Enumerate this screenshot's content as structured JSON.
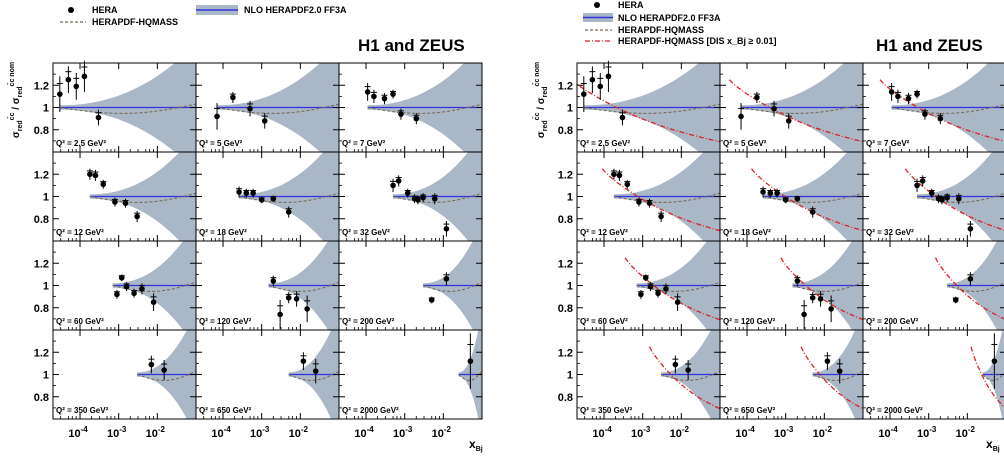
{
  "figure": {
    "collab": "H1 and ZEUS",
    "ylabel": "σ_red^{c̄c} / σ_red^{c̄c nom}",
    "xlabel": "x_Bj",
    "colors": {
      "band": "#a9b7c6",
      "nominal": "#3333dd",
      "hqmass": "#7a6a55",
      "hqmass_dis": "#dd2222",
      "data": "#000000"
    }
  },
  "left_legend": {
    "hera": "HERA",
    "nlo": "NLO HERAPDF2.0 FF3A",
    "hqmass": "HERAPDF-HQMASS"
  },
  "right_legend": {
    "hera": "HERA",
    "nlo": "NLO HERAPDF2.0 FF3A",
    "hqmass": "HERAPDF-HQMASS",
    "hqmass_dis": "HERAPDF-HQMASS [DIS x_Bj ≥ 0.01]"
  },
  "chart_data": {
    "type": "scatter",
    "xlabel": "x_Bj",
    "ylabel": "σ_red^{c̄c} / σ_red^{c̄c nom}",
    "xscale": "log",
    "xlim": [
      2e-05,
      0.1
    ],
    "ylim": [
      0.6,
      1.4
    ],
    "yticks": [
      0.8,
      1,
      1.2
    ],
    "xtick_labels": [
      "10^-4",
      "10^-3",
      "10^-2"
    ],
    "series": [
      {
        "name": "HERA"
      },
      {
        "name": "NLO HERAPDF2.0 FF3A"
      },
      {
        "name": "HERAPDF-HQMASS"
      },
      {
        "name": "HERAPDF-HQMASS [DIS x_Bj ≥ 0.01]"
      }
    ],
    "panels": [
      {
        "label": "Q² = 2.5 GeV²",
        "xmin": 3e-05,
        "points": [
          {
            "x": 3e-05,
            "y": 1.12,
            "err": 0.16
          },
          {
            "x": 5e-05,
            "y": 1.25,
            "err": 0.12
          },
          {
            "x": 8e-05,
            "y": 1.19,
            "err": 0.12
          },
          {
            "x": 0.00013,
            "y": 1.28,
            "err": 0.14
          },
          {
            "x": 0.0003,
            "y": 0.91,
            "err": 0.07
          }
        ]
      },
      {
        "label": "Q² = 5 GeV²",
        "xmin": 7e-05,
        "points": [
          {
            "x": 7e-05,
            "y": 0.92,
            "err": 0.12
          },
          {
            "x": 0.00018,
            "y": 1.09,
            "err": 0.05
          },
          {
            "x": 0.0005,
            "y": 0.99,
            "err": 0.07
          },
          {
            "x": 0.0012,
            "y": 0.88,
            "err": 0.07
          }
        ]
      },
      {
        "label": "Q² = 7 GeV²",
        "xmin": 0.00011,
        "points": [
          {
            "x": 0.00011,
            "y": 1.14,
            "err": 0.08
          },
          {
            "x": 0.00016,
            "y": 1.1,
            "err": 0.06
          },
          {
            "x": 0.0003,
            "y": 1.08,
            "err": 0.05
          },
          {
            "x": 0.0005,
            "y": 1.12,
            "err": 0.04
          },
          {
            "x": 0.0008,
            "y": 0.94,
            "err": 0.05
          },
          {
            "x": 0.002,
            "y": 0.9,
            "err": 0.05
          }
        ]
      },
      {
        "label": "Q² = 12 GeV²",
        "xmin": 0.00018,
        "points": [
          {
            "x": 0.00018,
            "y": 1.2,
            "err": 0.05
          },
          {
            "x": 0.00025,
            "y": 1.19,
            "err": 0.05
          },
          {
            "x": 0.0004,
            "y": 1.11,
            "err": 0.04
          },
          {
            "x": 0.0008,
            "y": 0.95,
            "err": 0.04
          },
          {
            "x": 0.0015,
            "y": 0.94,
            "err": 0.04
          },
          {
            "x": 0.003,
            "y": 0.82,
            "err": 0.05
          }
        ]
      },
      {
        "label": "Q² = 18 GeV²",
        "xmin": 0.00026,
        "points": [
          {
            "x": 0.00026,
            "y": 1.04,
            "err": 0.05
          },
          {
            "x": 0.0004,
            "y": 1.03,
            "err": 0.04
          },
          {
            "x": 0.0006,
            "y": 1.03,
            "err": 0.04
          },
          {
            "x": 0.001,
            "y": 0.97,
            "err": 0.03
          },
          {
            "x": 0.002,
            "y": 0.98,
            "err": 0.03
          },
          {
            "x": 0.005,
            "y": 0.86,
            "err": 0.05
          }
        ]
      },
      {
        "label": "Q² = 32 GeV²",
        "xmin": 0.0005,
        "points": [
          {
            "x": 0.0005,
            "y": 1.1,
            "err": 0.06
          },
          {
            "x": 0.0007,
            "y": 1.14,
            "err": 0.05
          },
          {
            "x": 0.0012,
            "y": 1.03,
            "err": 0.04
          },
          {
            "x": 0.0018,
            "y": 0.98,
            "err": 0.04
          },
          {
            "x": 0.0022,
            "y": 0.97,
            "err": 0.04
          },
          {
            "x": 0.003,
            "y": 0.99,
            "err": 0.04
          },
          {
            "x": 0.006,
            "y": 0.98,
            "err": 0.05
          },
          {
            "x": 0.012,
            "y": 0.71,
            "err": 0.07
          }
        ]
      },
      {
        "label": "Q² = 60 GeV²",
        "xmin": 0.0007,
        "points": [
          {
            "x": 0.0009,
            "y": 0.92,
            "err": 0.04
          },
          {
            "x": 0.0012,
            "y": 1.07,
            "err": 0.03
          },
          {
            "x": 0.0016,
            "y": 0.99,
            "err": 0.04
          },
          {
            "x": 0.0025,
            "y": 0.93,
            "err": 0.04
          },
          {
            "x": 0.004,
            "y": 0.97,
            "err": 0.05
          },
          {
            "x": 0.008,
            "y": 0.85,
            "err": 0.08
          }
        ]
      },
      {
        "label": "Q² = 120 GeV²",
        "xmin": 0.0015,
        "points": [
          {
            "x": 0.002,
            "y": 1.04,
            "err": 0.05
          },
          {
            "x": 0.003,
            "y": 0.74,
            "err": 0.13
          },
          {
            "x": 0.005,
            "y": 0.89,
            "err": 0.05
          },
          {
            "x": 0.008,
            "y": 0.88,
            "err": 0.07
          },
          {
            "x": 0.015,
            "y": 0.79,
            "err": 0.12
          }
        ]
      },
      {
        "label": "Q² = 200 GeV²",
        "xmin": 0.003,
        "points": [
          {
            "x": 0.005,
            "y": 0.87,
            "err": 0.03
          },
          {
            "x": 0.012,
            "y": 1.06,
            "err": 0.06
          }
        ]
      },
      {
        "label": "Q² = 350 GeV²",
        "xmin": 0.003,
        "points": [
          {
            "x": 0.007,
            "y": 1.09,
            "err": 0.08
          },
          {
            "x": 0.015,
            "y": 1.04,
            "err": 0.09
          }
        ]
      },
      {
        "label": "Q² = 650 GeV²",
        "xmin": 0.005,
        "points": [
          {
            "x": 0.012,
            "y": 1.12,
            "err": 0.08
          },
          {
            "x": 0.025,
            "y": 1.03,
            "err": 0.11
          }
        ]
      },
      {
        "label": "Q² = 2000 GeV²",
        "xmin": 0.025,
        "points": [
          {
            "x": 0.05,
            "y": 1.12,
            "err": 0.25
          }
        ]
      }
    ]
  }
}
